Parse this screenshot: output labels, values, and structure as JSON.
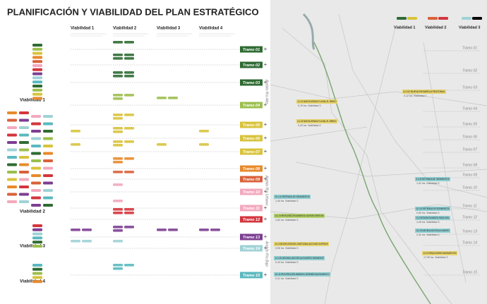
{
  "header": {
    "title": "PLANIFICACIÓN Y VIABILIDAD DEL PLAN ESTRATÉGICO"
  },
  "columns": [
    "Viabilidad 1",
    "Viabilidad 2",
    "Viabilidad 3",
    "Viabilidad 4"
  ],
  "legend": {
    "groups": [
      "Viabilidad 1",
      "Viabilidad 2",
      "Viabilidad 3",
      "Viabilidad 4"
    ]
  },
  "ambitos": [
    "Ámbito Río Alto",
    "Ámbito Río Urbano",
    "Ámbito Río Bajo"
  ],
  "tramos": [
    {
      "label": "Tramo 01",
      "color": "#2f6b33"
    },
    {
      "label": "Tramo 02",
      "color": "#2f6b33"
    },
    {
      "label": "Tramo 03",
      "color": "#2f6b33"
    },
    {
      "label": "Tramo 04",
      "color": "#9cbf4d"
    },
    {
      "label": "Tramo 05",
      "color": "#d8c33c"
    },
    {
      "label": "Tramo 06",
      "color": "#d8c33c"
    },
    {
      "label": "Tramo 07",
      "color": "#d8c33c"
    },
    {
      "label": "Tramo 08",
      "color": "#e88a2c"
    },
    {
      "label": "Tramo 09",
      "color": "#d9613a"
    },
    {
      "label": "Tramo 10",
      "color": "#f2a9bd"
    },
    {
      "label": "Tramo 11",
      "color": "#f2a9bd"
    },
    {
      "label": "Tramo 12",
      "color": "#d4353d"
    },
    {
      "label": "Tramo 13",
      "color": "#7d3f92"
    },
    {
      "label": "Tramo 14",
      "color": "#9fd2d6"
    },
    {
      "label": "Tramo 15",
      "color": "#5ab9bf"
    }
  ],
  "callouts": [
    {
      "title": "4.2.02 NUEVA PASARELA PEATONAL",
      "note": "0,12 ha. Viabilidad 1",
      "color": "#e6d36a"
    },
    {
      "title": "4.1.01 NUEVA SENDA FLUVIAL EL PARDO",
      "note": "0,76 ha. Viabilidad 3",
      "color": "#e6d36a"
    },
    {
      "title": "5.1.02 NUEVA SENDA FLUVIAL EL PARDO",
      "note": "0,43 ha. Viabilidad 2",
      "color": "#e6d36a"
    },
    {
      "title": "9.1.02 RETIRADA DE SEDIMENTOS",
      "note": "1,51 ha. Viabilidad 3",
      "color": "#8fcfd3"
    },
    {
      "title": "10.1.01 RETIRADA DE SEDIMENTOS",
      "note": "1,40 ha. Viabilidad 2",
      "color": "#8fcfd3"
    },
    {
      "title": "11.1.01 RETIRADA DE SEDIMENTOS",
      "note": "0,83 ha. Viabilidad 3",
      "color": "#8fcfd3"
    },
    {
      "title": "12.1.04 RESTAURACIÓN AMBIENTAL MARGEN DERECHA",
      "note": "1,62 ha. Viabilidad 3",
      "color": "#b5d36a"
    },
    {
      "title": "12.1.01 RESTAURACIÓN AMBIENTAL PARQUE LINEAL",
      "note": "1,26 ha. Viabilidad 3",
      "color": "#8fcfd3"
    },
    {
      "title": "13.1.03 NATURALIZACIÓN ALIVIADERO",
      "note": "0,32 ha. Viabilidad 3",
      "color": "#8fcfd3"
    },
    {
      "title": "13.1.2 MEJORA CONEXIÓN LONGITUDINAL BAJO NUDO SUPERSUR",
      "note": "0,50 ha. Viabilidad 3",
      "color": "#e6d36a"
    },
    {
      "title": "14.1.01 PARQUE AGRARIO MANZANARES SUR",
      "note": "17,90 ha. Viabilidad 3",
      "color": "#e6d36a"
    },
    {
      "title": "14.1.05 NATURALIZACIÓN ALIVIADERO EMISARIOS",
      "note": "0,44 ha. Viabilidad 3",
      "color": "#8fcfd3"
    },
    {
      "title": "15.1.01 RECUPERACIÓN AMBIENTAL DESEMBOCADURA ARROYO",
      "note": "0,41 ha. Viabilidad 3",
      "color": "#8fcfd3"
    }
  ]
}
